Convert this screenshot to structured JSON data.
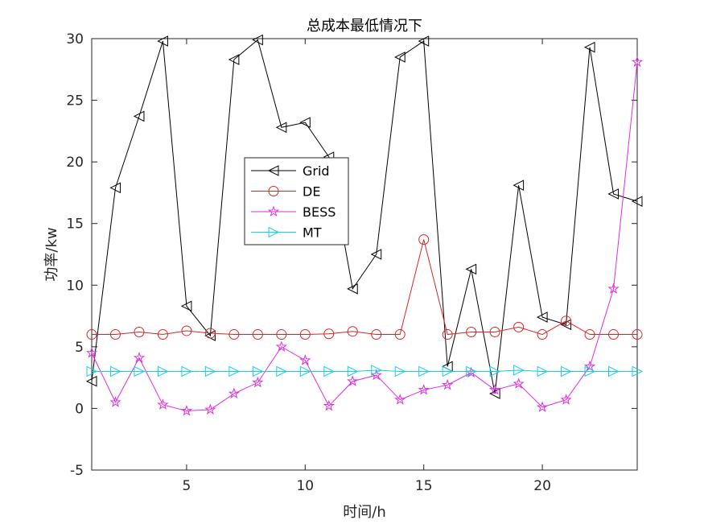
{
  "chart_data": {
    "type": "line",
    "title": "总成本最低情况下",
    "xlabel": "时间/h",
    "ylabel": "功率/kw",
    "xlim": [
      1,
      24
    ],
    "ylim": [
      -5,
      30
    ],
    "xticks": [
      5,
      10,
      15,
      20
    ],
    "yticks": [
      -5,
      0,
      5,
      10,
      15,
      20,
      25,
      30
    ],
    "grid": false,
    "legend_position": "center-left",
    "x": [
      1,
      2,
      3,
      4,
      5,
      6,
      7,
      8,
      9,
      10,
      11,
      12,
      13,
      14,
      15,
      16,
      17,
      18,
      19,
      20,
      21,
      22,
      23,
      24
    ],
    "series": [
      {
        "name": "Grid",
        "color": "#000000",
        "marker": "triangle-left",
        "values": [
          2.2,
          17.9,
          23.7,
          29.8,
          8.3,
          5.9,
          28.3,
          29.9,
          22.8,
          23.2,
          20.4,
          9.7,
          12.5,
          28.5,
          29.8,
          3.4,
          11.3,
          1.2,
          18.1,
          7.4,
          6.8,
          29.3,
          17.4,
          16.8
        ]
      },
      {
        "name": "DE",
        "color": "#d62728",
        "marker": "circle",
        "values": [
          6.0,
          6.0,
          6.2,
          6.0,
          6.3,
          6.1,
          6.0,
          6.0,
          6.0,
          6.0,
          6.05,
          6.25,
          6.0,
          6.0,
          13.7,
          6.0,
          6.2,
          6.2,
          6.6,
          6.0,
          7.1,
          6.0,
          6.0,
          6.0
        ]
      },
      {
        "name": "BESS",
        "color": "#e02de0",
        "marker": "star",
        "values": [
          4.5,
          0.5,
          4.1,
          0.3,
          -0.2,
          -0.1,
          1.2,
          2.1,
          5.0,
          3.9,
          0.2,
          2.2,
          2.7,
          0.7,
          1.5,
          1.9,
          2.9,
          1.5,
          2.0,
          0.1,
          0.7,
          3.4,
          9.7,
          28.1
        ]
      },
      {
        "name": "MT",
        "color": "#17cfe0",
        "marker": "triangle-right",
        "values": [
          3,
          3,
          3,
          3,
          3,
          3,
          3,
          3,
          3,
          3,
          3,
          3,
          3.1,
          3,
          3,
          3,
          3,
          3,
          3.1,
          3,
          3,
          3,
          3,
          3
        ]
      }
    ]
  }
}
